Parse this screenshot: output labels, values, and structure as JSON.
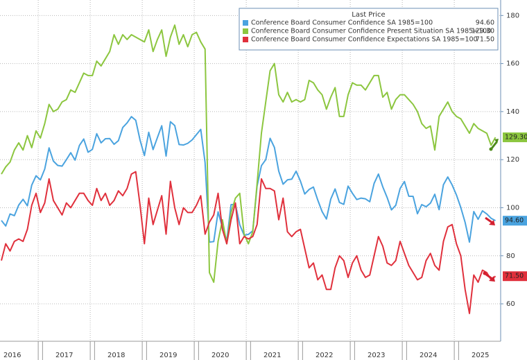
{
  "chart_data": {
    "type": "line",
    "legend_title": "Last Price",
    "legend_position": "top-right",
    "grid": true,
    "categories": [
      null,
      null,
      null,
      "2016",
      null,
      null,
      null,
      null,
      null,
      null,
      null,
      null,
      null,
      null,
      null,
      "2017",
      null,
      null,
      null,
      null,
      null,
      null,
      null,
      null,
      null,
      null,
      null,
      "2018",
      null,
      null,
      null,
      null,
      null,
      null,
      null,
      null,
      null,
      null,
      null,
      "2019",
      null,
      null,
      null,
      null,
      null,
      null,
      null,
      null,
      null,
      null,
      null,
      "2020",
      null,
      null,
      null,
      null,
      null,
      null,
      null,
      null,
      null,
      null,
      null,
      "2021",
      null,
      null,
      null,
      null,
      null,
      null,
      null,
      null,
      null,
      null,
      null,
      "2022",
      null,
      null,
      null,
      null,
      null,
      null,
      null,
      null,
      null,
      null,
      null,
      "2023",
      null,
      null,
      null,
      null,
      null,
      null,
      null,
      null,
      null,
      null,
      null,
      "2024",
      null,
      null,
      null,
      null,
      null,
      null,
      null,
      null,
      null,
      null,
      null,
      "2025",
      null,
      null,
      null
    ],
    "ylim": [
      45,
      185
    ],
    "yticks": [
      60,
      80,
      100,
      120,
      140,
      160,
      180
    ],
    "series": [
      {
        "name": "Conference Board Consumer Confidence SA 1985=100",
        "color": "#4aa3df",
        "last_label": "94.60",
        "values": [
          94.7,
          92.4,
          97.4,
          96.7,
          101.1,
          103.5,
          100.8,
          109.4,
          113.3,
          111.6,
          116.1,
          124.9,
          119.4,
          117.6,
          117.3,
          120.0,
          122.9,
          119.8,
          125.9,
          128.6,
          123.1,
          124.3,
          130.8,
          127.0,
          128.7,
          128.8,
          126.4,
          127.9,
          133.4,
          135.3,
          137.9,
          136.4,
          128.1,
          121.7,
          131.4,
          124.2,
          129.2,
          134.1,
          121.5,
          135.8,
          134.2,
          126.3,
          126.1,
          126.8,
          128.2,
          130.4,
          132.6,
          118.8,
          85.7,
          85.9,
          98.3,
          91.7,
          86.3,
          101.3,
          101.4,
          92.9,
          88.6,
          88.9,
          90.4,
          109.0,
          117.5,
          120.0,
          128.9,
          125.1,
          115.2,
          109.8,
          111.6,
          111.9,
          115.2,
          111.1,
          105.7,
          107.6,
          108.6,
          103.2,
          98.4,
          95.3,
          103.6,
          107.8,
          102.2,
          101.4,
          109.0,
          106.0,
          103.4,
          104.0,
          103.7,
          102.5,
          110.1,
          114.0,
          108.7,
          104.3,
          99.1,
          101.0,
          108.0,
          110.9,
          104.8,
          104.7,
          97.5,
          101.3,
          100.4,
          101.9,
          105.6,
          99.2,
          109.6,
          112.8,
          109.5,
          105.3,
          100.1,
          93.9,
          85.7,
          98.4,
          95.2,
          98.7,
          97.4,
          95.6,
          94.6
        ]
      },
      {
        "name": "Conference Board Consumer Confidence Present Situation SA 1985=100",
        "color": "#8cc63f",
        "last_label": "129.30",
        "values": [
          114,
          117,
          119,
          124,
          127,
          124,
          130,
          125,
          132,
          129,
          135,
          143,
          140,
          141,
          144,
          145,
          149,
          148,
          152,
          156,
          155,
          155,
          161,
          159,
          162,
          165,
          172,
          168,
          172,
          170,
          172,
          171,
          170,
          169,
          174,
          165,
          170,
          174,
          163,
          171,
          176,
          168,
          172,
          167,
          172,
          173,
          169,
          166,
          73,
          69,
          86,
          95,
          85,
          98,
          104,
          106,
          89,
          85,
          90,
          110,
          131,
          144,
          157,
          160,
          147,
          144,
          148,
          144,
          145,
          144,
          145,
          153,
          152,
          149,
          147,
          141,
          146,
          150,
          138,
          138,
          147,
          152,
          151,
          151,
          149,
          152,
          155,
          155,
          146,
          148,
          141,
          145,
          147,
          147,
          145,
          143,
          140,
          135,
          133,
          134,
          124,
          138,
          141,
          144,
          140,
          138,
          137,
          134,
          131,
          135,
          133,
          132,
          131,
          126,
          129.3
        ]
      },
      {
        "name": "Conference Board Consumer Confidence Expectations SA 1985=100",
        "color": "#e0303c",
        "last_label": "71.50",
        "values": [
          78,
          85,
          82,
          86,
          87,
          86,
          91,
          101,
          106,
          98,
          102,
          112,
          103,
          100,
          97,
          102,
          100,
          103,
          106,
          106,
          103,
          101,
          108,
          103,
          106,
          101,
          103,
          107,
          105,
          108,
          114,
          115,
          101,
          85,
          104,
          93,
          99,
          105,
          89,
          111,
          100,
          93,
          100,
          98,
          98,
          101,
          105,
          89,
          94,
          97,
          106,
          91,
          85,
          95,
          102,
          85,
          88,
          87,
          88,
          93,
          112,
          108,
          108,
          107,
          95,
          104,
          90,
          88,
          90,
          91,
          83,
          75,
          77,
          70,
          72,
          66,
          66,
          75,
          80,
          78,
          71,
          77,
          80,
          74,
          71,
          72,
          80,
          88,
          84,
          77,
          76,
          78,
          86,
          81,
          76,
          73,
          70,
          71,
          78,
          81,
          76,
          74,
          86,
          92,
          93,
          85,
          80,
          66,
          56,
          72,
          69,
          74,
          73,
          70,
          71.5
        ]
      }
    ]
  }
}
